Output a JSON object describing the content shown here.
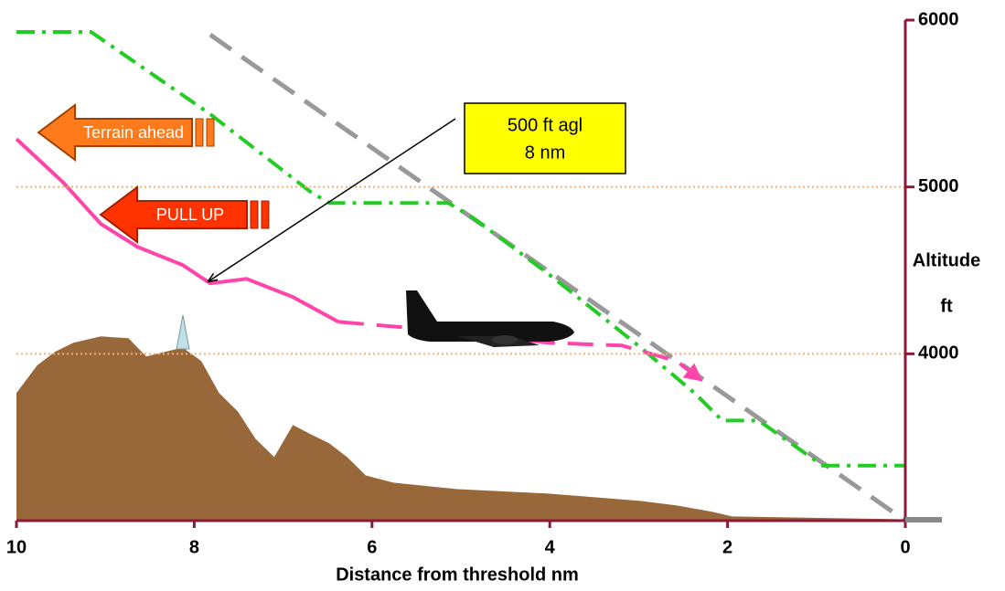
{
  "chart_data": {
    "type": "line",
    "x_label": "Distance from threshold    nm",
    "y_label": [
      "Altitude",
      "ft"
    ],
    "xlim": [
      10,
      0
    ],
    "xticks": [
      10,
      8,
      6,
      4,
      2,
      0
    ],
    "ylim": [
      3000,
      6000
    ],
    "yticks": [
      4000,
      5000,
      6000
    ],
    "grid": true,
    "series": [
      {
        "type": "area",
        "color": "#99683a",
        "x": [
          10.0,
          9.77,
          9.57,
          9.36,
          9.05,
          8.74,
          8.54,
          8.33,
          8.13,
          7.92,
          7.72,
          7.51,
          7.31,
          7.1,
          6.89,
          6.69,
          6.48,
          6.28,
          6.07,
          5.76,
          5.04,
          4.01,
          2.98,
          2.57,
          2.16,
          1.95,
          0
        ],
        "values": [
          3765,
          3929,
          4011,
          4066,
          4104,
          4093,
          3984,
          4011,
          4038,
          3956,
          3765,
          3655,
          3490,
          3381,
          3573,
          3518,
          3463,
          3381,
          3271,
          3228,
          3189,
          3162,
          3118,
          3091,
          3052,
          3025,
          3008
        ]
      },
      {
        "type": "line",
        "color": "#999999",
        "style": "dash",
        "x": [
          7.82,
          0
        ],
        "values": [
          5912,
          3000
        ]
      },
      {
        "type": "line",
        "color": "#22cc22",
        "style": "dashdot",
        "x": [
          10,
          9.16,
          7.82,
          6.69,
          6.48,
          5.14,
          4.84,
          4.01,
          2.98,
          2.37,
          2.06,
          1.65,
          0.93,
          0
        ],
        "values": [
          5929,
          5929,
          5436,
          4970,
          4904,
          4904,
          4806,
          4477,
          4039,
          3764,
          3600,
          3600,
          3330,
          3330
        ]
      },
      {
        "type": "line",
        "color": "#ff44aa",
        "style": "solid",
        "x": [
          10,
          9.47,
          9.05,
          8.64,
          8.13,
          7.82,
          7.41,
          6.89,
          6.38
        ],
        "values": [
          5288,
          5025,
          4778,
          4641,
          4532,
          4422,
          4449,
          4340,
          4192
        ]
      },
      {
        "type": "line",
        "color": "#ff44aa",
        "style": "dash",
        "x": [
          6.38,
          5.66,
          4.01,
          3.19,
          2.57,
          2.31
        ],
        "values": [
          4192,
          4159,
          4066,
          4050,
          3956,
          3847
        ]
      }
    ],
    "callout": [
      "500 ft agl",
      "8 nm"
    ],
    "warnings": [
      "Terrain ahead",
      "PULL UP"
    ]
  }
}
